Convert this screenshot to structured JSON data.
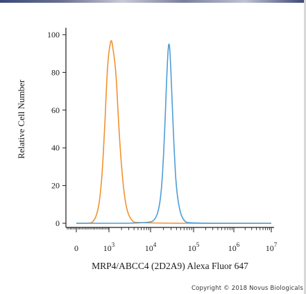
{
  "chart_data": {
    "type": "line",
    "xlabel": "MRP4/ABCC4 (2D2A9) Alexa Fluor 647",
    "ylabel": "Relative Cell Number",
    "xscale": "log",
    "ylim": [
      0,
      100
    ],
    "y_ticks": [
      "0",
      "20",
      "40",
      "60",
      "80",
      "100"
    ],
    "x_ticks": [
      {
        "base": "0",
        "exp": ""
      },
      {
        "base": "10",
        "exp": "3"
      },
      {
        "base": "10",
        "exp": "4"
      },
      {
        "base": "10",
        "exp": "5"
      },
      {
        "base": "10",
        "exp": "6"
      },
      {
        "base": "10",
        "exp": "7"
      }
    ],
    "series": [
      {
        "color": "#f0922e",
        "points": [
          [
            0.0,
            0
          ],
          [
            0.45,
            0
          ],
          [
            0.52,
            1
          ],
          [
            0.62,
            4
          ],
          [
            0.72,
            12
          ],
          [
            0.8,
            28
          ],
          [
            0.86,
            48
          ],
          [
            0.9,
            62
          ],
          [
            0.94,
            78
          ],
          [
            0.98,
            88
          ],
          [
            1.02,
            94
          ],
          [
            1.06,
            98
          ],
          [
            1.1,
            92
          ],
          [
            1.14,
            86
          ],
          [
            1.18,
            76
          ],
          [
            1.22,
            58
          ],
          [
            1.28,
            36
          ],
          [
            1.36,
            16
          ],
          [
            1.44,
            6
          ],
          [
            1.54,
            1.5
          ],
          [
            1.65,
            0
          ],
          [
            5.0,
            0
          ]
        ]
      },
      {
        "color": "#4d9dd6",
        "points": [
          [
            0.0,
            0
          ],
          [
            1.95,
            0
          ],
          [
            2.12,
            2
          ],
          [
            2.22,
            10
          ],
          [
            2.28,
            26
          ],
          [
            2.33,
            50
          ],
          [
            2.37,
            74
          ],
          [
            2.4,
            90
          ],
          [
            2.43,
            97
          ],
          [
            2.46,
            88
          ],
          [
            2.5,
            64
          ],
          [
            2.55,
            38
          ],
          [
            2.6,
            18
          ],
          [
            2.68,
            6
          ],
          [
            2.78,
            1
          ],
          [
            2.9,
            0
          ],
          [
            5.0,
            0
          ]
        ]
      }
    ],
    "annotation": "Copyright © 2018 Novus Biologicals"
  }
}
